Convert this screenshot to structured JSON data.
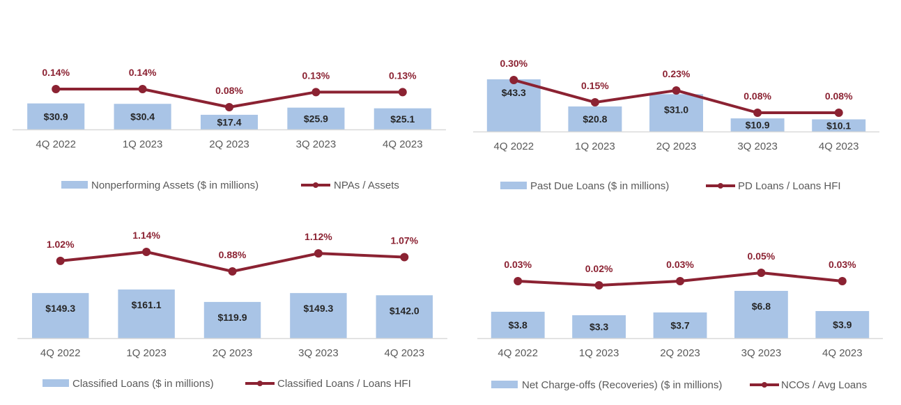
{
  "colors": {
    "bar": "#A9C4E6",
    "line": "#8B2232",
    "axis": "#D9D9D9"
  },
  "chart_data": [
    {
      "type": "bar+line",
      "categories": [
        "4Q 2022",
        "1Q 2023",
        "2Q 2023",
        "3Q 2023",
        "4Q 2023"
      ],
      "series": [
        {
          "name": "Nonperforming Assets ($ in millions)",
          "kind": "bar",
          "values": [
            30.9,
            30.4,
            17.4,
            25.9,
            25.1
          ],
          "labels": [
            "$30.9",
            "$30.4",
            "$17.4",
            "$25.9",
            "$25.1"
          ]
        },
        {
          "name": "NPAs / Assets",
          "kind": "line",
          "values": [
            0.14,
            0.14,
            0.08,
            0.13,
            0.13
          ],
          "labels": [
            "0.14%",
            "0.14%",
            "0.08%",
            "0.13%",
            "0.13%"
          ]
        }
      ],
      "legend": "bottom"
    },
    {
      "type": "bar+line",
      "categories": [
        "4Q 2022",
        "1Q 2023",
        "2Q 2023",
        "3Q 2023",
        "4Q 2023"
      ],
      "series": [
        {
          "name": "Past Due Loans ($ in millions)",
          "kind": "bar",
          "values": [
            43.3,
            20.8,
            31.0,
            10.9,
            10.1
          ],
          "labels": [
            "$43.3",
            "$20.8",
            "$31.0",
            "$10.9",
            "$10.1"
          ]
        },
        {
          "name": "PD Loans / Loans HFI",
          "kind": "line",
          "values": [
            0.3,
            0.15,
            0.23,
            0.08,
            0.08
          ],
          "labels": [
            "0.30%",
            "0.15%",
            "0.23%",
            "0.08%",
            "0.08%"
          ]
        }
      ],
      "legend": "bottom"
    },
    {
      "type": "bar+line",
      "categories": [
        "4Q 2022",
        "1Q 2023",
        "2Q 2023",
        "3Q 2023",
        "4Q 2023"
      ],
      "series": [
        {
          "name": "Classified Loans ($ in millions)",
          "kind": "bar",
          "values": [
            149.3,
            161.1,
            119.9,
            149.3,
            142.0
          ],
          "labels": [
            "$149.3",
            "$161.1",
            "$119.9",
            "$149.3",
            "$142.0"
          ]
        },
        {
          "name": "Classified Loans /  Loans HFI",
          "kind": "line",
          "values": [
            1.02,
            1.14,
            0.88,
            1.12,
            1.07
          ],
          "labels": [
            "1.02%",
            "1.14%",
            "0.88%",
            "1.12%",
            "1.07%"
          ]
        }
      ],
      "legend": "bottom"
    },
    {
      "type": "bar+line",
      "categories": [
        "4Q 2022",
        "1Q 2023",
        "2Q 2023",
        "3Q 2023",
        "4Q 2023"
      ],
      "series": [
        {
          "name": "Net Charge-offs (Recoveries) ($ in millions)",
          "kind": "bar",
          "values": [
            3.8,
            3.3,
            3.7,
            6.8,
            3.9
          ],
          "labels": [
            "$3.8",
            "$3.3",
            "$3.7",
            "$6.8",
            "$3.9"
          ]
        },
        {
          "name": "NCOs / Avg Loans",
          "kind": "line",
          "values": [
            0.03,
            0.02,
            0.03,
            0.05,
            0.03
          ],
          "labels": [
            "0.03%",
            "0.02%",
            "0.03%",
            "0.05%",
            "0.03%"
          ]
        }
      ],
      "legend": "bottom"
    }
  ]
}
